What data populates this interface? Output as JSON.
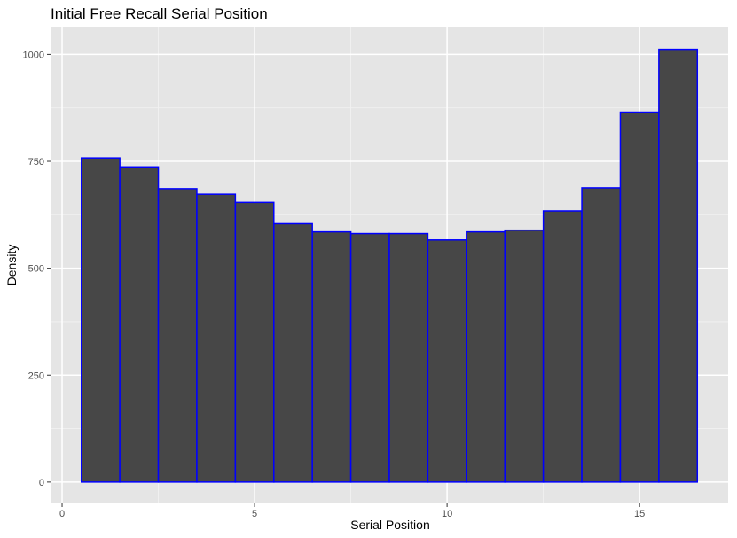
{
  "chart_data": {
    "type": "bar",
    "title": "Initial Free Recall Serial Position",
    "xlabel": "Serial Position",
    "ylabel": "Density",
    "x": [
      1,
      2,
      3,
      4,
      5,
      6,
      7,
      8,
      9,
      10,
      11,
      12,
      13,
      14,
      15,
      16
    ],
    "values": [
      758,
      737,
      686,
      673,
      654,
      604,
      585,
      581,
      581,
      566,
      585,
      589,
      634,
      688,
      865,
      1012
    ],
    "xlim": [
      -0.3,
      17.3
    ],
    "ylim": [
      -50,
      1063
    ],
    "x_ticks": [
      0,
      5,
      10,
      15
    ],
    "x_tick_labels": [
      "0",
      "5",
      "10",
      "15"
    ],
    "y_ticks": [
      0,
      250,
      500,
      750,
      1000
    ],
    "y_tick_labels": [
      "0",
      "250",
      "500",
      "750",
      "1000"
    ],
    "grid": true,
    "legend": "none",
    "colors": {
      "panel_background": "#e5e5e5",
      "grid_major": "#ffffff",
      "grid_minor": "#f2f2f2",
      "bar_fill": "#474747",
      "bar_outline": "#0000ff",
      "tick_mark": "#333333",
      "tick_text": "#4d4d4d"
    }
  }
}
